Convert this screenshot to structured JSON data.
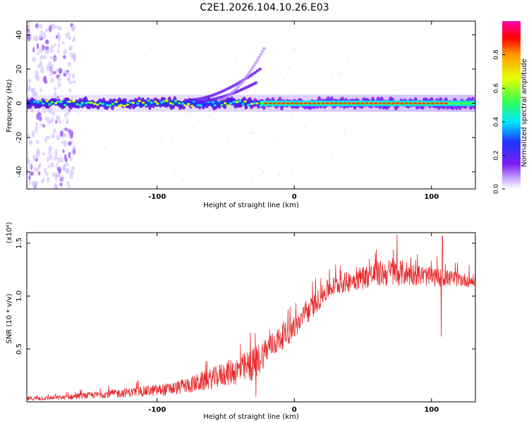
{
  "title": "C2E1.2026.104.10.26.E03",
  "colors": {
    "snr_line": "#e8292b",
    "frame": "#000000",
    "background": "#ffffff"
  },
  "chart_data": [
    {
      "type": "heatmap",
      "name": "spectrogram",
      "xlabel": "Height of straight line (km)",
      "ylabel": "Frequency (Hz)",
      "xlim": [
        -195,
        132
      ],
      "ylim": [
        -50,
        48
      ],
      "xticks": [
        -100,
        0,
        100
      ],
      "xtick_labels": [
        "-100",
        "0",
        "100"
      ],
      "yticks": [
        -40,
        -20,
        0,
        20,
        40
      ],
      "ytick_labels": [
        "-40",
        "-20",
        "0",
        "20",
        "40"
      ],
      "colorbar": {
        "label": "Normalized spectral amplitude",
        "range": [
          0,
          1
        ],
        "ticks": [
          0.0,
          0.2,
          0.4,
          0.6,
          0.8
        ],
        "tick_labels": [
          "0.0",
          "0.2",
          "0.4",
          "0.6",
          "0.8"
        ],
        "colormap": [
          "#ffffff",
          "#7b1cf5",
          "#1f35ff",
          "#00e8ff",
          "#33ff55",
          "#e8ff00",
          "#ff9900",
          "#ff0000",
          "#ff00aa"
        ]
      },
      "features": [
        {
          "name": "main-band",
          "x_range": [
            -195,
            132
          ],
          "center_hz": 0,
          "strength": "low to high left-to-right"
        },
        {
          "name": "upper-branch-1",
          "x_range": [
            -75,
            -25
          ],
          "start_hz": 2,
          "end_hz": 20
        },
        {
          "name": "upper-branch-2",
          "x_range": [
            -70,
            -28
          ],
          "start_hz": 1,
          "end_hz": 12
        },
        {
          "name": "upper-branch-3",
          "x_range": [
            -55,
            -22
          ],
          "start_hz": 2,
          "end_hz": 32
        },
        {
          "name": "noise-column",
          "x_range": [
            -195,
            -160
          ],
          "hz_range": [
            -50,
            48
          ]
        }
      ]
    },
    {
      "type": "line",
      "name": "snr",
      "xlabel": "Height of straight line (km)",
      "ylabel": "SNR (10 * v/v)",
      "yscale_label": "(x10⁴)",
      "xlim": [
        -195,
        132
      ],
      "ylim": [
        0,
        1.6
      ],
      "xticks": [
        -100,
        0,
        100
      ],
      "xtick_labels": [
        "-100",
        "0",
        "100"
      ],
      "yticks": [
        0.5,
        1.0,
        1.5
      ],
      "ytick_labels": [
        "0.5",
        "1.0",
        "1.5"
      ],
      "series": [
        {
          "name": "SNR",
          "envelope_x": [
            -195,
            -170,
            -150,
            -130,
            -110,
            -90,
            -80,
            -70,
            -60,
            -50,
            -40,
            -30,
            -25,
            -20,
            -10,
            0,
            10,
            20,
            25,
            30,
            40,
            50,
            60,
            70,
            80,
            90,
            100,
            110,
            120,
            132
          ],
          "envelope_y": [
            0.03,
            0.04,
            0.06,
            0.08,
            0.1,
            0.12,
            0.15,
            0.18,
            0.22,
            0.27,
            0.3,
            0.35,
            0.42,
            0.5,
            0.6,
            0.7,
            0.85,
            1.0,
            1.07,
            1.1,
            1.14,
            1.18,
            1.21,
            1.22,
            1.22,
            1.2,
            1.18,
            1.17,
            1.16,
            1.14
          ],
          "noise_amplitude": [
            0.02,
            0.02,
            0.03,
            0.04,
            0.05,
            0.06,
            0.07,
            0.09,
            0.1,
            0.12,
            0.14,
            0.16,
            0.15,
            0.13,
            0.12,
            0.11,
            0.11,
            0.1,
            0.1,
            0.09,
            0.1,
            0.11,
            0.12,
            0.13,
            0.12,
            0.1,
            0.09,
            0.08,
            0.07,
            0.06
          ],
          "peaks": [
            {
              "x": 75,
              "y": 1.58
            },
            {
              "x": 108,
              "y": 1.57
            },
            {
              "x": 107,
              "y": 0.62
            },
            {
              "x": -28,
              "y": 0.05
            }
          ]
        }
      ]
    }
  ]
}
